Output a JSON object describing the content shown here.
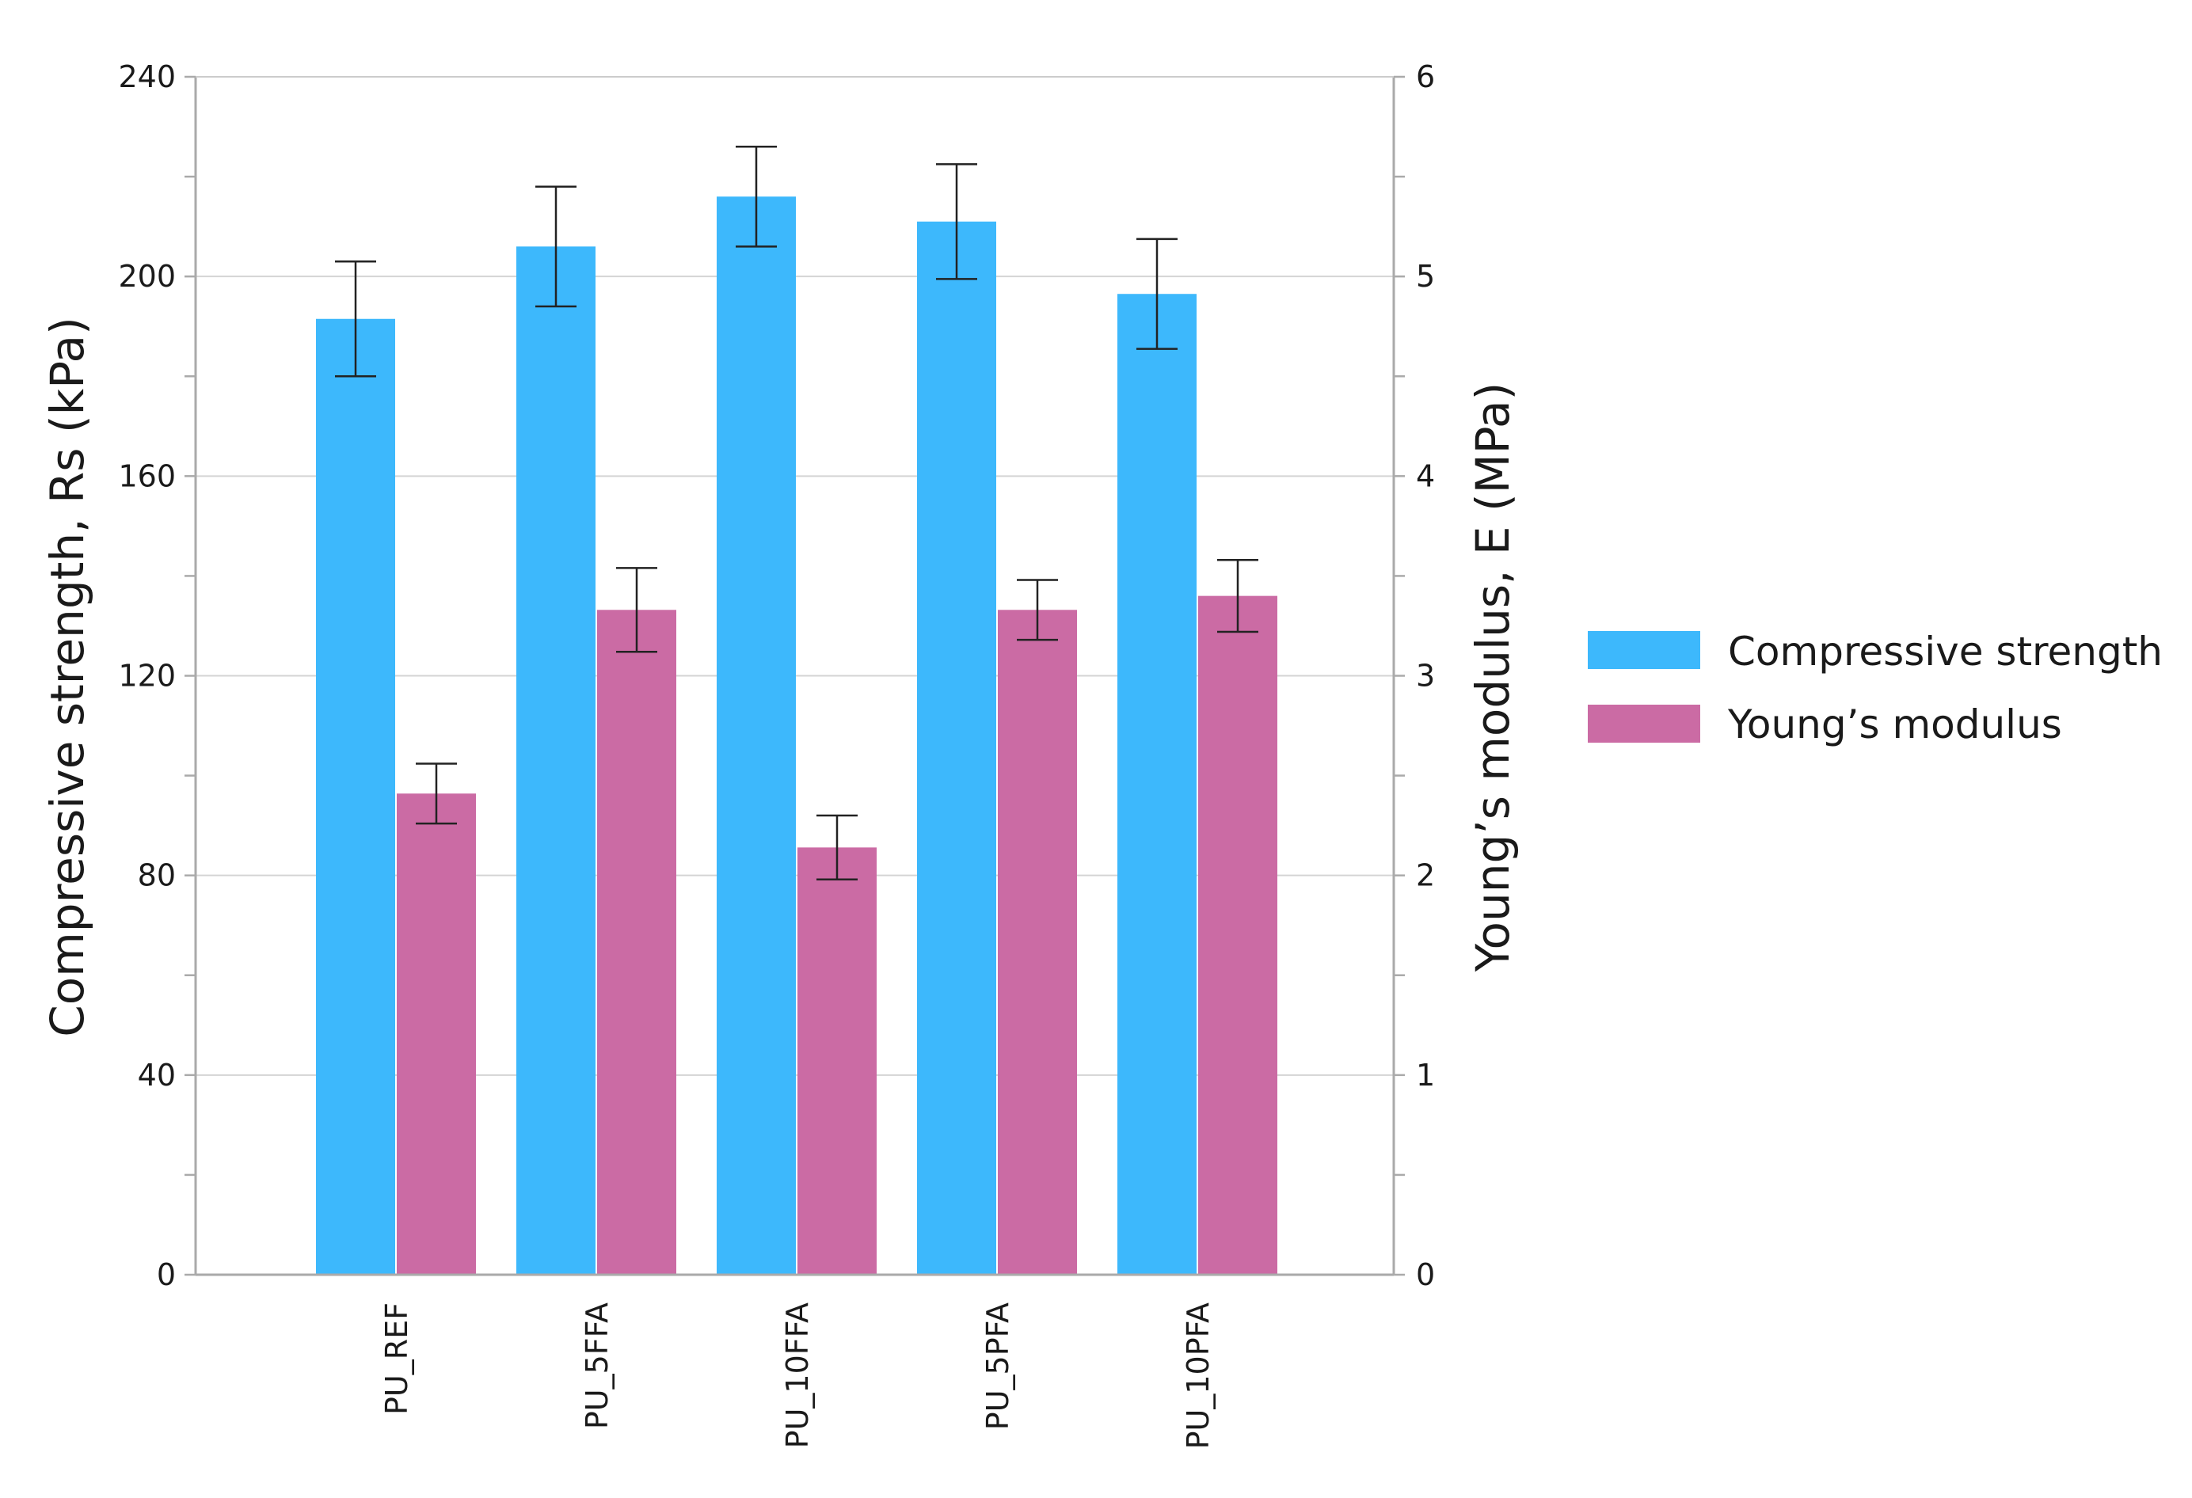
{
  "chart_data": {
    "type": "bar",
    "title": "",
    "xlabel": "",
    "categories": [
      "PU_REF",
      "PU_5FFA",
      "PU_10FFA",
      "PU_5PFA",
      "PU_10PFA"
    ],
    "y_left": {
      "label": "Compressive strength, Rs (kPa)",
      "lim": [
        0,
        240
      ],
      "major_ticks": [
        0,
        40,
        80,
        120,
        160,
        200,
        240
      ],
      "tick_labels": [
        "0",
        "40",
        "80",
        "120",
        "160",
        "200",
        "240"
      ],
      "minor_step": 20
    },
    "y_right": {
      "label": "Young’s modulus, E (MPa)",
      "lim": [
        0,
        6
      ],
      "major_ticks": [
        0,
        1,
        2,
        3,
        4,
        5,
        6
      ],
      "tick_labels": [
        "0",
        "1",
        "2",
        "3",
        "4",
        "5",
        "6"
      ]
    },
    "grid": true,
    "legend_position": "right",
    "series": [
      {
        "name": "Compressive strength",
        "axis": "left",
        "color": "#3db8fc",
        "values": [
          191.5,
          206,
          216,
          211,
          196.5
        ],
        "error": [
          11.5,
          12,
          10,
          11.5,
          11
        ]
      },
      {
        "name": "Young’s modulus",
        "axis": "right",
        "color": "#cb6ba4",
        "values": [
          2.41,
          3.33,
          2.14,
          3.33,
          3.4
        ],
        "error": [
          0.15,
          0.21,
          0.16,
          0.15,
          0.18
        ]
      }
    ]
  }
}
